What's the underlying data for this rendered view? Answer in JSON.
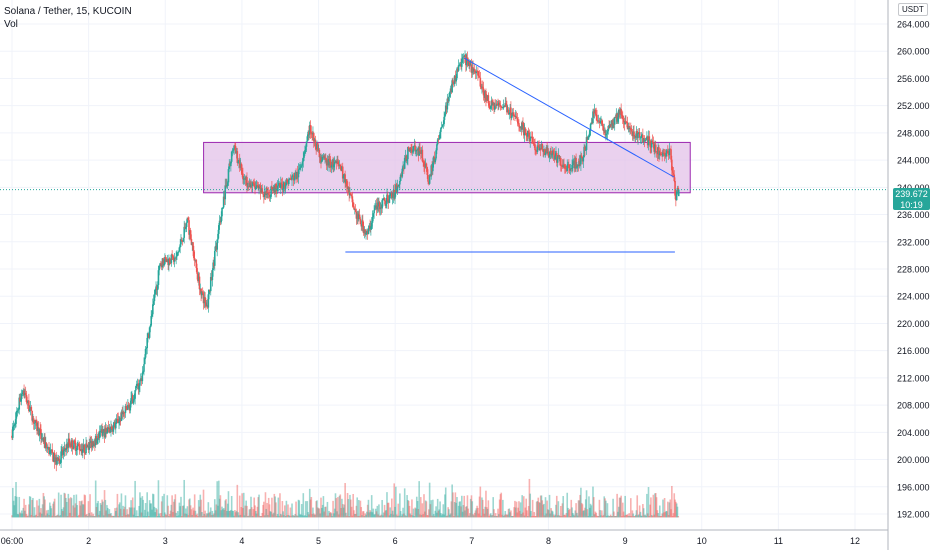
{
  "legend": {
    "title": "Solana / Tether, 15, KUCOIN",
    "volume": "Vol"
  },
  "unit": "USDT",
  "current_price": "239.672",
  "countdown": "10:19",
  "colors": {
    "up": "#26a69a",
    "down": "#ef5350",
    "rectangle_fill": "#e1bee7",
    "rectangle_border": "#9c27b0",
    "trendline": "#2962ff",
    "grid": "#f0f3fa",
    "axis_text": "#131722",
    "price_line": "#26a69a"
  },
  "chart_data": {
    "type": "candlestick",
    "title": "Solana / Tether, 15, KUCOIN",
    "x_ticks": [
      "06:00",
      "2",
      "3",
      "4",
      "5",
      "6",
      "7",
      "8",
      "9",
      "10",
      "11",
      "12"
    ],
    "y_ticks": [
      192,
      196,
      200,
      204,
      208,
      212,
      216,
      220,
      224,
      228,
      232,
      236,
      240,
      244,
      248,
      252,
      256,
      260,
      264
    ],
    "ylim": [
      191,
      266
    ],
    "xlim": [
      0,
      11.05
    ],
    "grid": true,
    "last_price": 239.672,
    "path_points": [
      [
        0.0,
        203.5
      ],
      [
        0.15,
        210.5
      ],
      [
        0.3,
        205.5
      ],
      [
        0.45,
        202
      ],
      [
        0.6,
        199.5
      ],
      [
        0.75,
        202.5
      ],
      [
        0.95,
        201.5
      ],
      [
        1.15,
        203.5
      ],
      [
        1.35,
        205
      ],
      [
        1.55,
        208
      ],
      [
        1.7,
        212
      ],
      [
        1.8,
        219
      ],
      [
        1.95,
        229
      ],
      [
        2.15,
        229.5
      ],
      [
        2.3,
        235
      ],
      [
        2.45,
        226
      ],
      [
        2.55,
        222
      ],
      [
        2.75,
        237
      ],
      [
        2.9,
        246
      ],
      [
        3.05,
        241
      ],
      [
        3.3,
        239
      ],
      [
        3.5,
        240
      ],
      [
        3.75,
        242
      ],
      [
        3.9,
        249
      ],
      [
        4.05,
        244
      ],
      [
        4.3,
        243
      ],
      [
        4.5,
        236
      ],
      [
        4.65,
        233
      ],
      [
        4.75,
        237
      ],
      [
        5.0,
        239
      ],
      [
        5.2,
        246
      ],
      [
        5.35,
        245
      ],
      [
        5.45,
        241
      ],
      [
        5.6,
        248
      ],
      [
        5.75,
        255
      ],
      [
        5.9,
        259
      ],
      [
        6.05,
        257
      ],
      [
        6.25,
        252
      ],
      [
        6.45,
        252
      ],
      [
        6.65,
        249
      ],
      [
        6.85,
        246
      ],
      [
        7.05,
        245
      ],
      [
        7.25,
        243
      ],
      [
        7.45,
        244
      ],
      [
        7.6,
        251
      ],
      [
        7.75,
        248
      ],
      [
        7.95,
        251
      ],
      [
        8.1,
        248
      ],
      [
        8.3,
        247
      ],
      [
        8.45,
        245
      ],
      [
        8.6,
        245
      ],
      [
        8.67,
        238.7
      ],
      [
        8.7,
        239.67
      ]
    ],
    "volume_baseline": 191.5,
    "rectangle": {
      "x_start": 2.5,
      "x_end": 8.85,
      "y_low": 239.2,
      "y_high": 246.6
    },
    "trendline": {
      "x1": 5.9,
      "y1": 259.0,
      "x2": 8.64,
      "y2": 241.5
    },
    "horizontal_line": {
      "x1": 4.35,
      "x2": 8.65,
      "y": 230.5
    }
  }
}
